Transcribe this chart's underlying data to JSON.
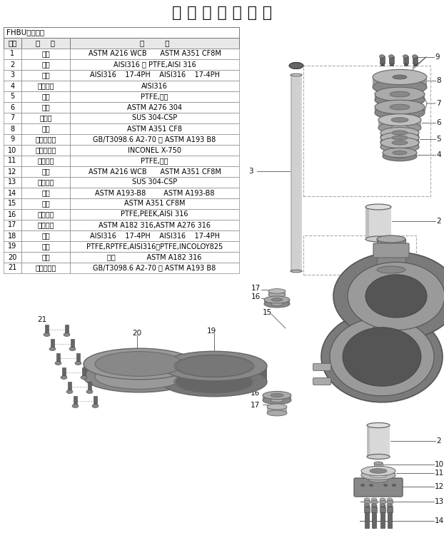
{
  "title": "高 性 能 偏 心 蝶 阀",
  "table_title": "FHBU系列蝶阀",
  "col_headers": [
    "序号",
    "部    件",
    "材        料"
  ],
  "rows": [
    [
      "1",
      "阀体",
      "ASTM A216 WCB      ASTM A351 CF8M"
    ],
    [
      "2",
      "轴套",
      "AISI316 衬 PTFE,AISI 316"
    ],
    [
      "3",
      "阀杆",
      "AISI316    17-4PH    AISI316    17-4PH"
    ],
    [
      "4",
      "填料垫片",
      "AISI316"
    ],
    [
      "5",
      "填料",
      "PTFE,石墨"
    ],
    [
      "6",
      "压圈",
      "ASTM A276 304"
    ],
    [
      "7",
      "螺板簧",
      "SUS 304-CSP"
    ],
    [
      "8",
      "压盖",
      "ASTM A351 CF8"
    ],
    [
      "9",
      "内六角螺钉",
      "GB/T3098.6 A2-70 或 ASTM A193 B8"
    ],
    [
      "10",
      "防静电弹簧",
      "INCONEL X-750"
    ],
    [
      "11",
      "密封垫片",
      "PTFE,石墨"
    ],
    [
      "12",
      "盖板",
      "ASTM A216 WCB      ASTM A351 CF8M"
    ],
    [
      "13",
      "弹簧垫片",
      "SUS 304-CSP"
    ],
    [
      "14",
      "螺栓",
      "ASTM A193-B8        ASTM A193-B8"
    ],
    [
      "15",
      "螺板",
      "ASTM A351 CF8M"
    ],
    [
      "16",
      "止推轴承",
      "PTFE,PEEK,AISI 316"
    ],
    [
      "17",
      "止推轴承",
      "ASTM A182 316,ASTM A276 316"
    ],
    [
      "18",
      "锲销",
      "AISI316    17-4PH    AISI316    17-4PH"
    ],
    [
      "19",
      "阀座",
      "PTFE,RPTFE,AISI316衬PTFE,INCOLOY825"
    ],
    [
      "20",
      "嵌件",
      "碳钢              ASTM A182 316"
    ],
    [
      "21",
      "内六角螺钉",
      "GB/T3098.6 A2-70 或 ASTM A193 B8"
    ]
  ],
  "bg_color": "#ffffff",
  "border_color": "#666666",
  "text_color": "#000000",
  "title_fontsize": 16,
  "table_fontsize": 7
}
